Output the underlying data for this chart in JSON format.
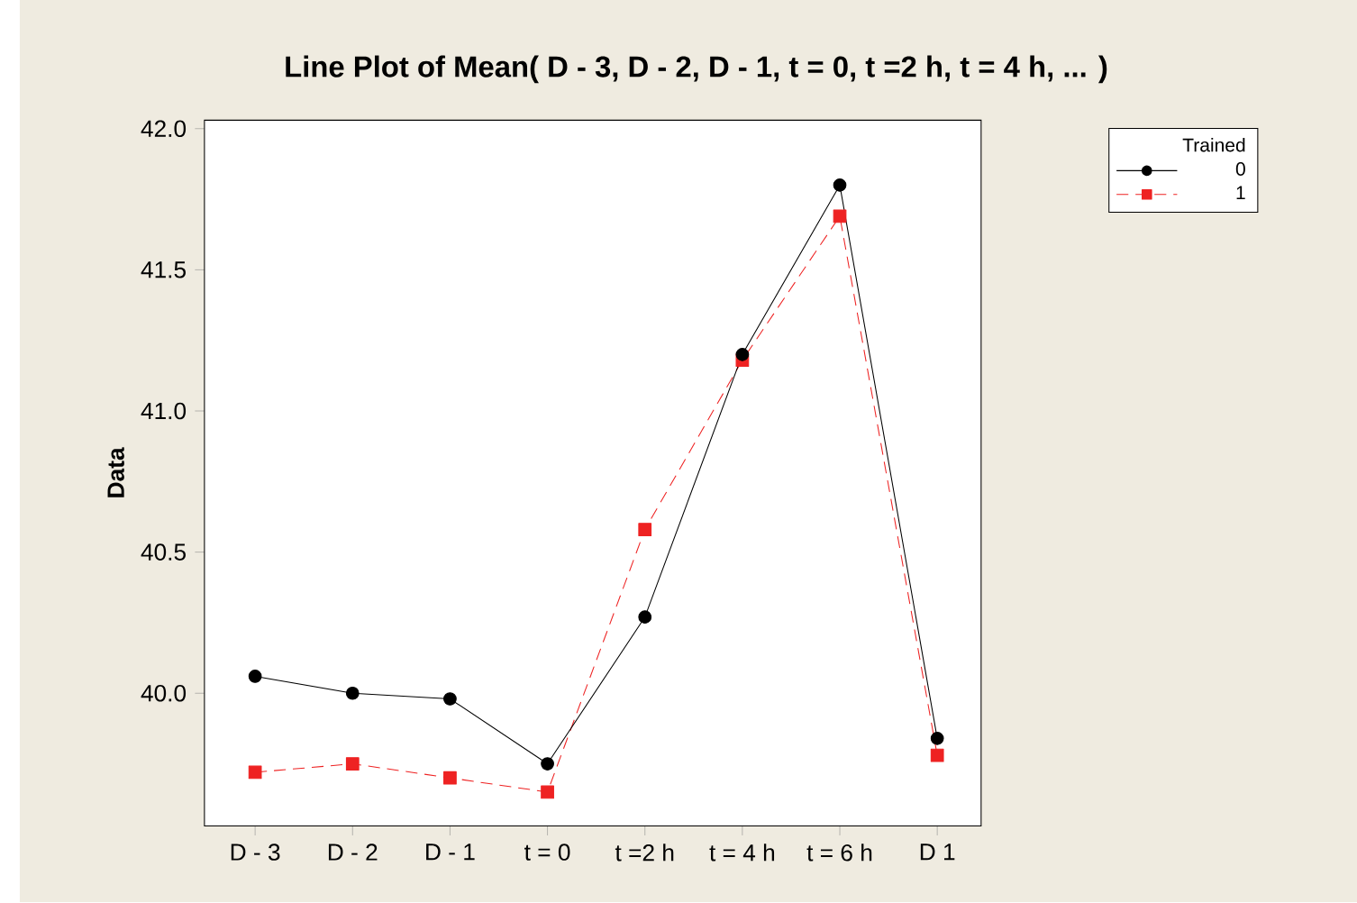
{
  "chart_data": {
    "type": "line",
    "title": "Line Plot of Mean( D - 3, D - 2, D - 1, t = 0, t =2 h, t = 4 h, ... )",
    "ylabel": "Data",
    "legend_title": "Trained",
    "categories": [
      "D - 3",
      "D - 2",
      "D - 1",
      "t = 0",
      "t =2 h",
      "t = 4 h",
      "t = 6 h",
      "D 1"
    ],
    "series": [
      {
        "name": "0",
        "color": "#000000",
        "marker": "circle",
        "line_style": "solid",
        "values": [
          40.06,
          40.0,
          39.98,
          39.75,
          40.27,
          41.2,
          41.8,
          39.84
        ]
      },
      {
        "name": "1",
        "color": "#ee2222",
        "marker": "square",
        "line_style": "dashed",
        "values": [
          39.72,
          39.75,
          39.7,
          39.65,
          40.58,
          41.18,
          41.69,
          39.78
        ]
      }
    ],
    "ylim": [
      39.53,
      42.03
    ],
    "yticks": [
      {
        "value": 40.0,
        "label": "40.0"
      },
      {
        "value": 40.5,
        "label": "40.5"
      },
      {
        "value": 41.0,
        "label": "41.0"
      },
      {
        "value": 41.5,
        "label": "41.5"
      },
      {
        "value": 42.0,
        "label": "42.0"
      }
    ],
    "grid": false,
    "legend": "top right"
  }
}
